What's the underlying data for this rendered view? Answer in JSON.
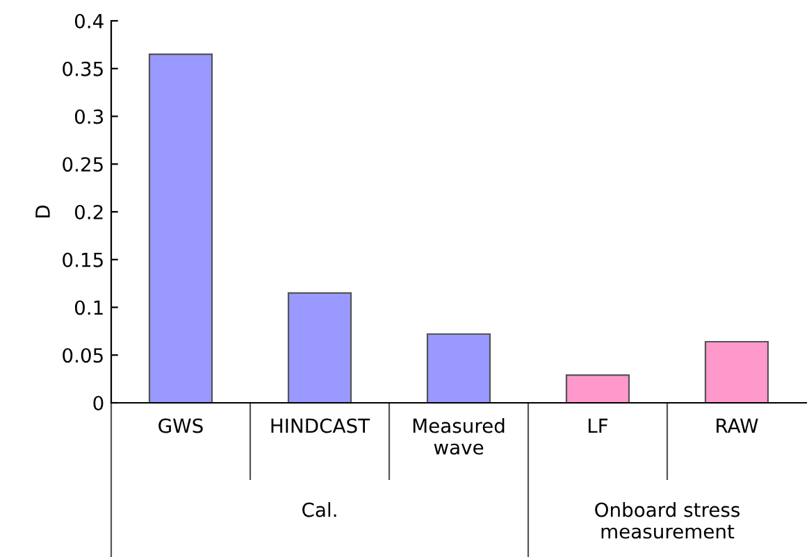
{
  "chart_data": {
    "type": "bar",
    "ylabel": "D",
    "categories": [
      "GWS",
      "HINDCAST",
      "Measured\nwave",
      "LF",
      "RAW"
    ],
    "values": [
      0.365,
      0.115,
      0.072,
      0.029,
      0.064
    ],
    "colors": [
      "#9999ff",
      "#9999ff",
      "#9999ff",
      "#ff99cc",
      "#ff99cc"
    ],
    "ylim": [
      0,
      0.4
    ],
    "yticks": [
      0,
      0.05,
      0.1,
      0.15,
      0.2,
      0.25,
      0.3,
      0.35,
      0.4
    ],
    "grid": false,
    "legend": false,
    "annotations": [
      "Cal.",
      "Onboard stress\nmeasurement"
    ]
  }
}
